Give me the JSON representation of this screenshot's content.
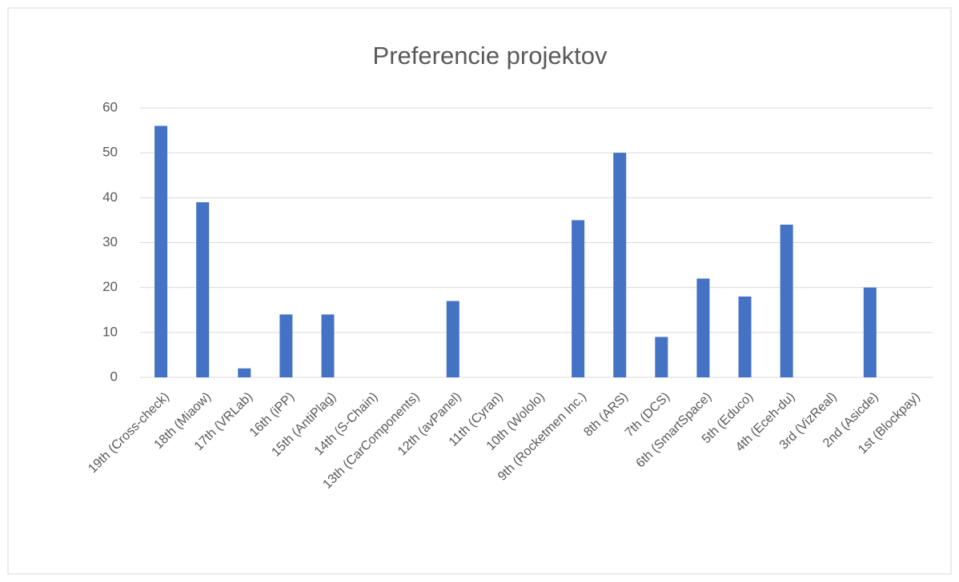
{
  "chart_data": {
    "type": "bar",
    "title": "Preferencie projektov",
    "categories": [
      "19th (Cross-check)",
      "18th (Miaow)",
      "17th (VRLab)",
      "16th (iPP)",
      "15th (AntiPlag)",
      "14th (S-Chain)",
      "13th (CarComponents)",
      "12th (avPanel)",
      "11th (Cyran)",
      "10th (Wololo)",
      "9th (Rocketmen Inc.)",
      "8th (ARS)",
      "7th (DCS)",
      "6th (SmartSpace)",
      "5th (Educo)",
      "4th (Eceh-du)",
      "3rd (VizReal)",
      "2nd (Asicde)",
      "1st (Blockpay)"
    ],
    "values": [
      56,
      39,
      2,
      14,
      14,
      0,
      0,
      17,
      0,
      0,
      35,
      50,
      9,
      22,
      18,
      34,
      0,
      20,
      0
    ],
    "color": "#4472c4",
    "ylim": [
      0,
      60
    ],
    "yticks": [
      0,
      10,
      20,
      30,
      40,
      50,
      60
    ],
    "grid": true
  }
}
